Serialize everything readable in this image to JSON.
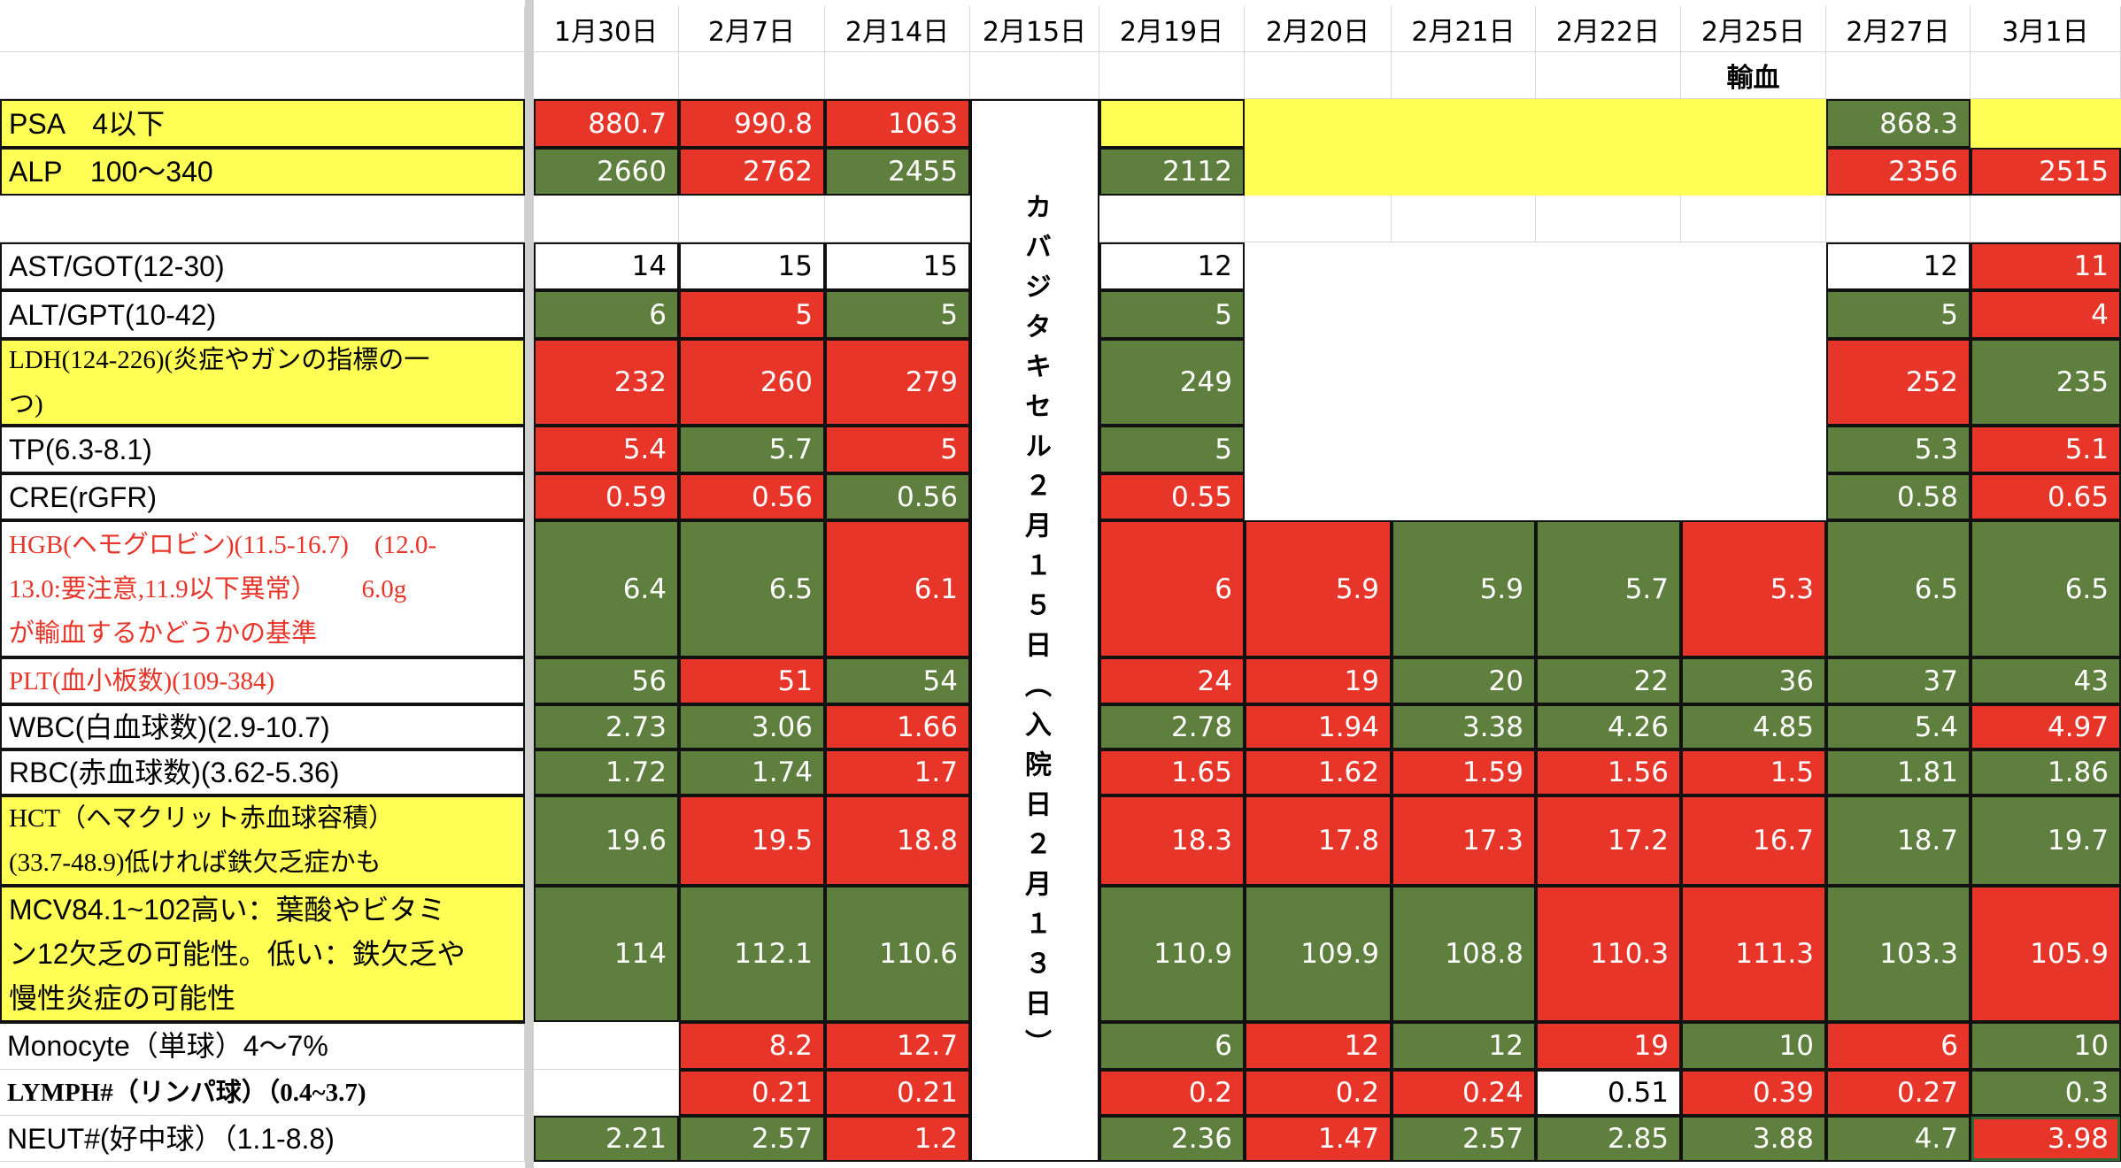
{
  "colors": {
    "r": "#E8352A",
    "g": "#5E7F3E",
    "y": "#FFFF55",
    "w": "#FFFFFF"
  },
  "dates": [
    "1月30日",
    "2月7日",
    "2月14日",
    "2月15日",
    "2月19日",
    "2月20日",
    "2月21日",
    "2月22日",
    "2月25日",
    "2月27日",
    "3月1日"
  ],
  "notes": [
    "",
    "",
    "",
    "",
    "",
    "",
    "",
    "",
    "輸血",
    "",
    ""
  ],
  "merged_column_text": "カバジタキセル２月１５日（入院日２月１３日）",
  "rows": [
    {
      "label": "PSA　4以下",
      "label_bg": "y",
      "boxed": true,
      "values": [
        "880.7",
        "990.8",
        "1063",
        "",
        "",
        "",
        "",
        "",
        "868.3",
        ""
      ],
      "cells": [
        "r",
        "r",
        "r",
        "yb",
        "y",
        "y",
        "y",
        "y",
        "g",
        "y"
      ]
    },
    {
      "label": "ALP　100〜340",
      "label_bg": "y",
      "boxed": true,
      "values": [
        "2660",
        "2762",
        "2455",
        "2112",
        "",
        "",
        "",
        "",
        "2356",
        "2515"
      ],
      "cells": [
        "g",
        "r",
        "g",
        "g",
        "y",
        "y",
        "y",
        "y",
        "r",
        "r"
      ]
    },
    {
      "label": "",
      "label_bg": "w",
      "boxed": false,
      "values": [
        "",
        "",
        "",
        "",
        "",
        "",
        "",
        "",
        "",
        ""
      ],
      "cells": [
        "",
        "",
        "",
        "",
        "",
        "",
        "",
        "",
        "",
        ""
      ]
    },
    {
      "label": "AST/GOT(12-30)",
      "label_bg": "w",
      "boxed": true,
      "values": [
        "14",
        "15",
        "15",
        "12",
        "",
        "",
        "",
        "",
        "12",
        "11"
      ],
      "cells": [
        "w",
        "w",
        "w",
        "w",
        "n",
        "n",
        "n",
        "n",
        "w",
        "r"
      ]
    },
    {
      "label": "ALT/GPT(10-42)",
      "label_bg": "w",
      "boxed": true,
      "values": [
        "6",
        "5",
        "5",
        "5",
        "",
        "",
        "",
        "",
        "5",
        "4"
      ],
      "cells": [
        "g",
        "r",
        "g",
        "g",
        "n",
        "n",
        "n",
        "n",
        "g",
        "r"
      ]
    },
    {
      "label": "LDH(124-226)(炎症やガンの指標の一\nつ)",
      "label_bg": "y",
      "boxed": true,
      "serif": true,
      "values": [
        "232",
        "260",
        "279",
        "249",
        "",
        "",
        "",
        "",
        "252",
        "235"
      ],
      "cells": [
        "r",
        "r",
        "r",
        "g",
        "n",
        "n",
        "n",
        "n",
        "r",
        "g"
      ]
    },
    {
      "label": "TP(6.3-8.1)",
      "label_bg": "w",
      "boxed": true,
      "values": [
        "5.4",
        "5.7",
        "5",
        "5",
        "",
        "",
        "",
        "",
        "5.3",
        "5.1"
      ],
      "cells": [
        "r",
        "g",
        "r",
        "g",
        "n",
        "n",
        "n",
        "n",
        "g",
        "r"
      ]
    },
    {
      "label": "CRE(rGFR)",
      "label_bg": "w",
      "boxed": true,
      "values": [
        "0.59",
        "0.56",
        "0.56",
        "0.55",
        "",
        "",
        "",
        "",
        "0.58",
        "0.65"
      ],
      "cells": [
        "r",
        "r",
        "g",
        "r",
        "n",
        "n",
        "n",
        "n",
        "g",
        "r"
      ]
    },
    {
      "label": "HGB(ヘモグロビン)(11.5-16.7)　(12.0-\n13.0:要注意,11.9以下異常）　　 6.0g\nが輸血するかどうかの基準",
      "label_bg": "w",
      "label_color": "#E8352A",
      "boxed": true,
      "serif": true,
      "values": [
        "6.4",
        "6.5",
        "6.1",
        "6",
        "5.9",
        "5.9",
        "5.7",
        "5.3",
        "6.5",
        "6.5"
      ],
      "cells": [
        "g",
        "g",
        "r",
        "r",
        "r",
        "g",
        "g",
        "r",
        "g",
        "g"
      ]
    },
    {
      "label": "PLT(血小板数)(109-384)",
      "label_bg": "w",
      "label_color": "#E8352A",
      "boxed": true,
      "serif": true,
      "values": [
        "56",
        "51",
        "54",
        "24",
        "19",
        "20",
        "22",
        "36",
        "37",
        "43"
      ],
      "cells": [
        "g",
        "r",
        "g",
        "r",
        "r",
        "g",
        "g",
        "g",
        "g",
        "g"
      ]
    },
    {
      "label": "WBC(白血球数)(2.9-10.7)",
      "label_bg": "w",
      "boxed": true,
      "values": [
        "2.73",
        "3.06",
        "1.66",
        "2.78",
        "1.94",
        "3.38",
        "4.26",
        "4.85",
        "5.4",
        "4.97"
      ],
      "cells": [
        "g",
        "g",
        "r",
        "g",
        "r",
        "g",
        "g",
        "g",
        "g",
        "r"
      ]
    },
    {
      "label": "RBC(赤血球数)(3.62-5.36)",
      "label_bg": "w",
      "boxed": true,
      "values": [
        "1.72",
        "1.74",
        "1.7",
        "1.65",
        "1.62",
        "1.59",
        "1.56",
        "1.5",
        "1.81",
        "1.86"
      ],
      "cells": [
        "g",
        "g",
        "r",
        "r",
        "r",
        "r",
        "r",
        "r",
        "g",
        "g"
      ]
    },
    {
      "label": "HCT（ヘマクリット赤血球容積）\n(33.7-48.9)低ければ鉄欠乏症かも",
      "label_bg": "y",
      "boxed": true,
      "serif": true,
      "values": [
        "19.6",
        "19.5",
        "18.8",
        "18.3",
        "17.8",
        "17.3",
        "17.2",
        "16.7",
        "18.7",
        "19.7"
      ],
      "cells": [
        "g",
        "r",
        "r",
        "r",
        "r",
        "r",
        "r",
        "r",
        "g",
        "g"
      ]
    },
    {
      "label": "MCV84.1~102高い：葉酸やビタミ\nン12欠乏の可能性。低い：鉄欠乏や\n慢性炎症の可能性",
      "label_bg": "y",
      "boxed": true,
      "values": [
        "114",
        "112.1",
        "110.6",
        "110.9",
        "109.9",
        "108.8",
        "110.3",
        "111.3",
        "103.3",
        "105.9"
      ],
      "cells": [
        "g",
        "g",
        "g",
        "g",
        "g",
        "g",
        "r",
        "r",
        "g",
        "r"
      ]
    },
    {
      "label": "Monocyte（単球）4〜7%",
      "label_bg": "w",
      "boxed": false,
      "values": [
        "",
        "8.2",
        "12.7",
        "6",
        "12",
        "12",
        "19",
        "10",
        "6",
        "10"
      ],
      "cells": [
        "",
        "r",
        "r",
        "g",
        "r",
        "g",
        "r",
        "g",
        "r",
        "g"
      ]
    },
    {
      "label": "LYMPH#（リンパ球）（0.4~3.7)",
      "label_bg": "w",
      "boxed": false,
      "serif": true,
      "bold": true,
      "values": [
        "",
        "0.21",
        "0.21",
        "0.2",
        "0.2",
        "0.24",
        "0.51",
        "0.39",
        "0.27",
        "0.3"
      ],
      "cells": [
        "",
        "r",
        "r",
        "r",
        "r",
        "r",
        "w",
        "r",
        "r",
        "g"
      ]
    },
    {
      "label": "NEUT#(好中球）（1.1-8.8)",
      "label_bg": "w",
      "boxed": false,
      "values": [
        "2.21",
        "2.57",
        "1.2",
        "2.36",
        "1.47",
        "2.57",
        "2.85",
        "3.88",
        "4.7",
        "3.98"
      ],
      "cells": [
        "g",
        "g",
        "r",
        "g",
        "r",
        "g",
        "g",
        "g",
        "g",
        "r"
      ],
      "selected_index": 9
    }
  ]
}
